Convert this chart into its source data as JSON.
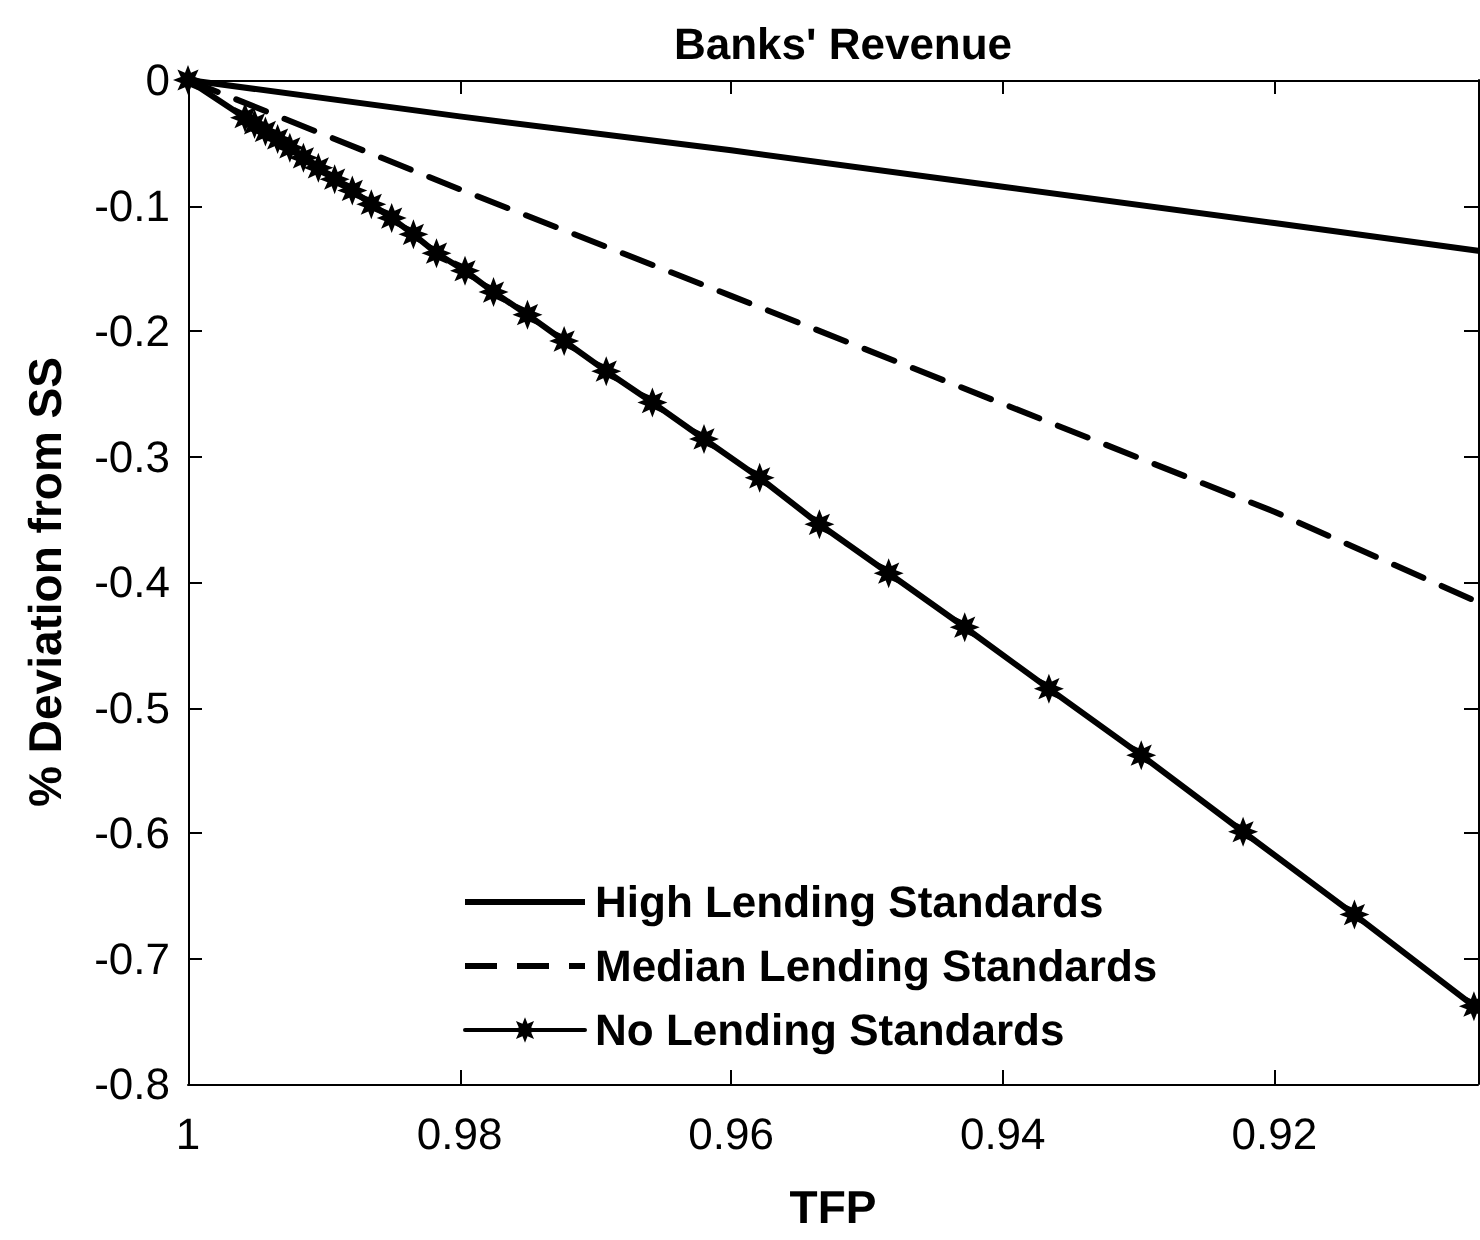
{
  "chart_data": {
    "type": "line",
    "title": "Banks' Revenue",
    "xlabel": "TFP",
    "ylabel": "% Deviation from SS",
    "xlim": [
      1,
      0.905
    ],
    "xticks": [
      1,
      0.98,
      0.96,
      0.94,
      0.92
    ],
    "ylim": [
      -0.8,
      0
    ],
    "yticks": [
      0,
      -0.1,
      -0.2,
      -0.3,
      -0.4,
      -0.5,
      -0.6,
      -0.7,
      -0.8
    ],
    "grid": false,
    "legend": "bottom",
    "marker": "none",
    "line_style": "solid",
    "series": [
      {
        "name": "High Lending Standards",
        "color": "#000000",
        "x": [
          1,
          0.98,
          0.96,
          0.94,
          0.92,
          0.905
        ],
        "values": [
          0,
          -0.029,
          -0.056,
          -0.085,
          -0.114,
          -0.136
        ]
      },
      {
        "name": "Median Lending Standards",
        "color": "#000000",
        "line_style": "dashed",
        "x": [
          1,
          0.98,
          0.96,
          0.94,
          0.92,
          0.905
        ],
        "values": [
          0,
          -0.087,
          -0.172,
          -0.258,
          -0.344,
          -0.416
        ]
      },
      {
        "name": "No Lending Standards",
        "color": "#000000",
        "marker": "star",
        "x": [
          1,
          0.9958,
          0.9951,
          0.9943,
          0.9934,
          0.9925,
          0.9915,
          0.9904,
          0.9892,
          0.9879,
          0.9865,
          0.985,
          0.9834,
          0.9817,
          0.9796,
          0.9775,
          0.975,
          0.9723,
          0.9692,
          0.9658,
          0.962,
          0.9579,
          0.9535,
          0.9484,
          0.9428,
          0.9366,
          0.9298,
          0.9223,
          0.9141,
          0.9053
        ],
        "values": [
          0,
          -0.03,
          -0.035,
          -0.041,
          -0.047,
          -0.054,
          -0.062,
          -0.07,
          -0.079,
          -0.088,
          -0.099,
          -0.11,
          -0.123,
          -0.138,
          -0.152,
          -0.169,
          -0.187,
          -0.208,
          -0.232,
          -0.257,
          -0.286,
          -0.317,
          -0.354,
          -0.393,
          -0.436,
          -0.485,
          -0.538,
          -0.599,
          -0.665,
          -0.738
        ]
      }
    ]
  }
}
